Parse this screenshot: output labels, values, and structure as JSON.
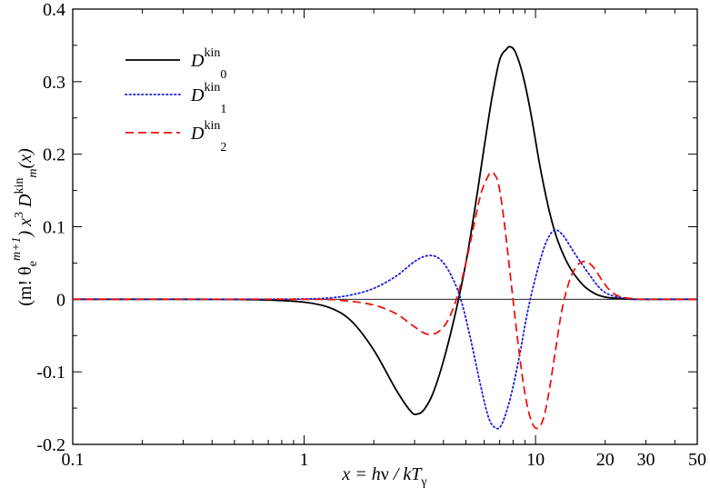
{
  "chart_data": {
    "type": "line",
    "xscale": "log",
    "xlim": [
      0.1,
      50
    ],
    "ylim": [
      -0.2,
      0.4
    ],
    "x_ticks": [
      "0.1",
      "1",
      "10",
      "20",
      "30",
      "50"
    ],
    "y_ticks": [
      "-0.2",
      "-0.1",
      "0",
      "0.1",
      "0.2",
      "0.3",
      "0.4"
    ],
    "xlabel": {
      "x": "x",
      "eq": " = h",
      "nu": "ν",
      "slash": " / k",
      "T": "T",
      "gamma": "γ"
    },
    "ylabel": {
      "open": "(m! θ",
      "e": "e",
      "mp1": "m+1",
      "close": ") x",
      "three": "3",
      "D": " D",
      "kin": "kin",
      "m": "m",
      "arg": "(x)"
    },
    "legend_placement": "top-left",
    "series": [
      {
        "name": {
          "D": "D",
          "sup": "kin",
          "sub": "0"
        },
        "color": "#000000",
        "dash": "solid",
        "x": [
          0.1,
          0.3,
          0.5,
          0.7,
          1.0,
          1.3,
          1.6,
          2.0,
          2.5,
          2.9,
          3.1,
          3.3,
          3.6,
          4.0,
          4.5,
          5.0,
          5.5,
          6.0,
          6.5,
          7.0,
          7.5,
          7.8,
          8.2,
          8.8,
          9.5,
          10.5,
          11.5,
          12.5,
          14,
          16,
          18,
          20,
          23,
          26,
          30,
          50
        ],
        "y": [
          0,
          0,
          -0.0002,
          -0.001,
          -0.004,
          -0.012,
          -0.03,
          -0.07,
          -0.125,
          -0.155,
          -0.158,
          -0.152,
          -0.13,
          -0.085,
          -0.02,
          0.05,
          0.13,
          0.21,
          0.28,
          0.33,
          0.345,
          0.348,
          0.34,
          0.31,
          0.26,
          0.18,
          0.12,
          0.08,
          0.045,
          0.02,
          0.008,
          0.003,
          0.001,
          0,
          0,
          0
        ]
      },
      {
        "name": {
          "D": "D",
          "sup": "kin",
          "sub": "1"
        },
        "color": "#1a1adf",
        "dash": "dotted",
        "x": [
          0.1,
          0.5,
          1.0,
          1.3,
          1.6,
          2.0,
          2.5,
          3.0,
          3.4,
          3.8,
          4.2,
          4.7,
          5.2,
          5.8,
          6.3,
          6.8,
          7.2,
          7.8,
          8.5,
          9.2,
          10,
          11,
          12,
          13,
          14,
          15,
          17,
          19,
          21,
          24,
          28,
          50
        ],
        "y": [
          0,
          0,
          0.0005,
          0.002,
          0.006,
          0.015,
          0.032,
          0.052,
          0.06,
          0.057,
          0.04,
          0.005,
          -0.05,
          -0.12,
          -0.165,
          -0.178,
          -0.17,
          -0.135,
          -0.08,
          -0.02,
          0.03,
          0.075,
          0.095,
          0.09,
          0.075,
          0.06,
          0.035,
          0.015,
          0.006,
          0.002,
          0,
          0
        ]
      },
      {
        "name": {
          "D": "D",
          "sup": "kin",
          "sub": "2"
        },
        "color": "#ee1111",
        "dash": "dashed",
        "x": [
          0.1,
          1.0,
          1.5,
          2.0,
          2.5,
          3.0,
          3.4,
          3.8,
          4.2,
          4.6,
          5.0,
          5.4,
          5.8,
          6.2,
          6.5,
          6.9,
          7.3,
          7.8,
          8.4,
          9.0,
          9.6,
          10.2,
          10.8,
          11.4,
          12.2,
          13,
          14,
          15,
          16,
          17,
          18,
          19.5,
          21,
          23,
          26,
          30,
          50
        ],
        "y": [
          0,
          0,
          -0.002,
          -0.008,
          -0.02,
          -0.038,
          -0.048,
          -0.045,
          -0.028,
          0.005,
          0.05,
          0.1,
          0.145,
          0.168,
          0.175,
          0.16,
          0.11,
          0.03,
          -0.06,
          -0.13,
          -0.168,
          -0.178,
          -0.165,
          -0.13,
          -0.07,
          -0.015,
          0.025,
          0.045,
          0.052,
          0.05,
          0.042,
          0.025,
          0.012,
          0.004,
          0.001,
          0,
          0
        ]
      }
    ]
  }
}
